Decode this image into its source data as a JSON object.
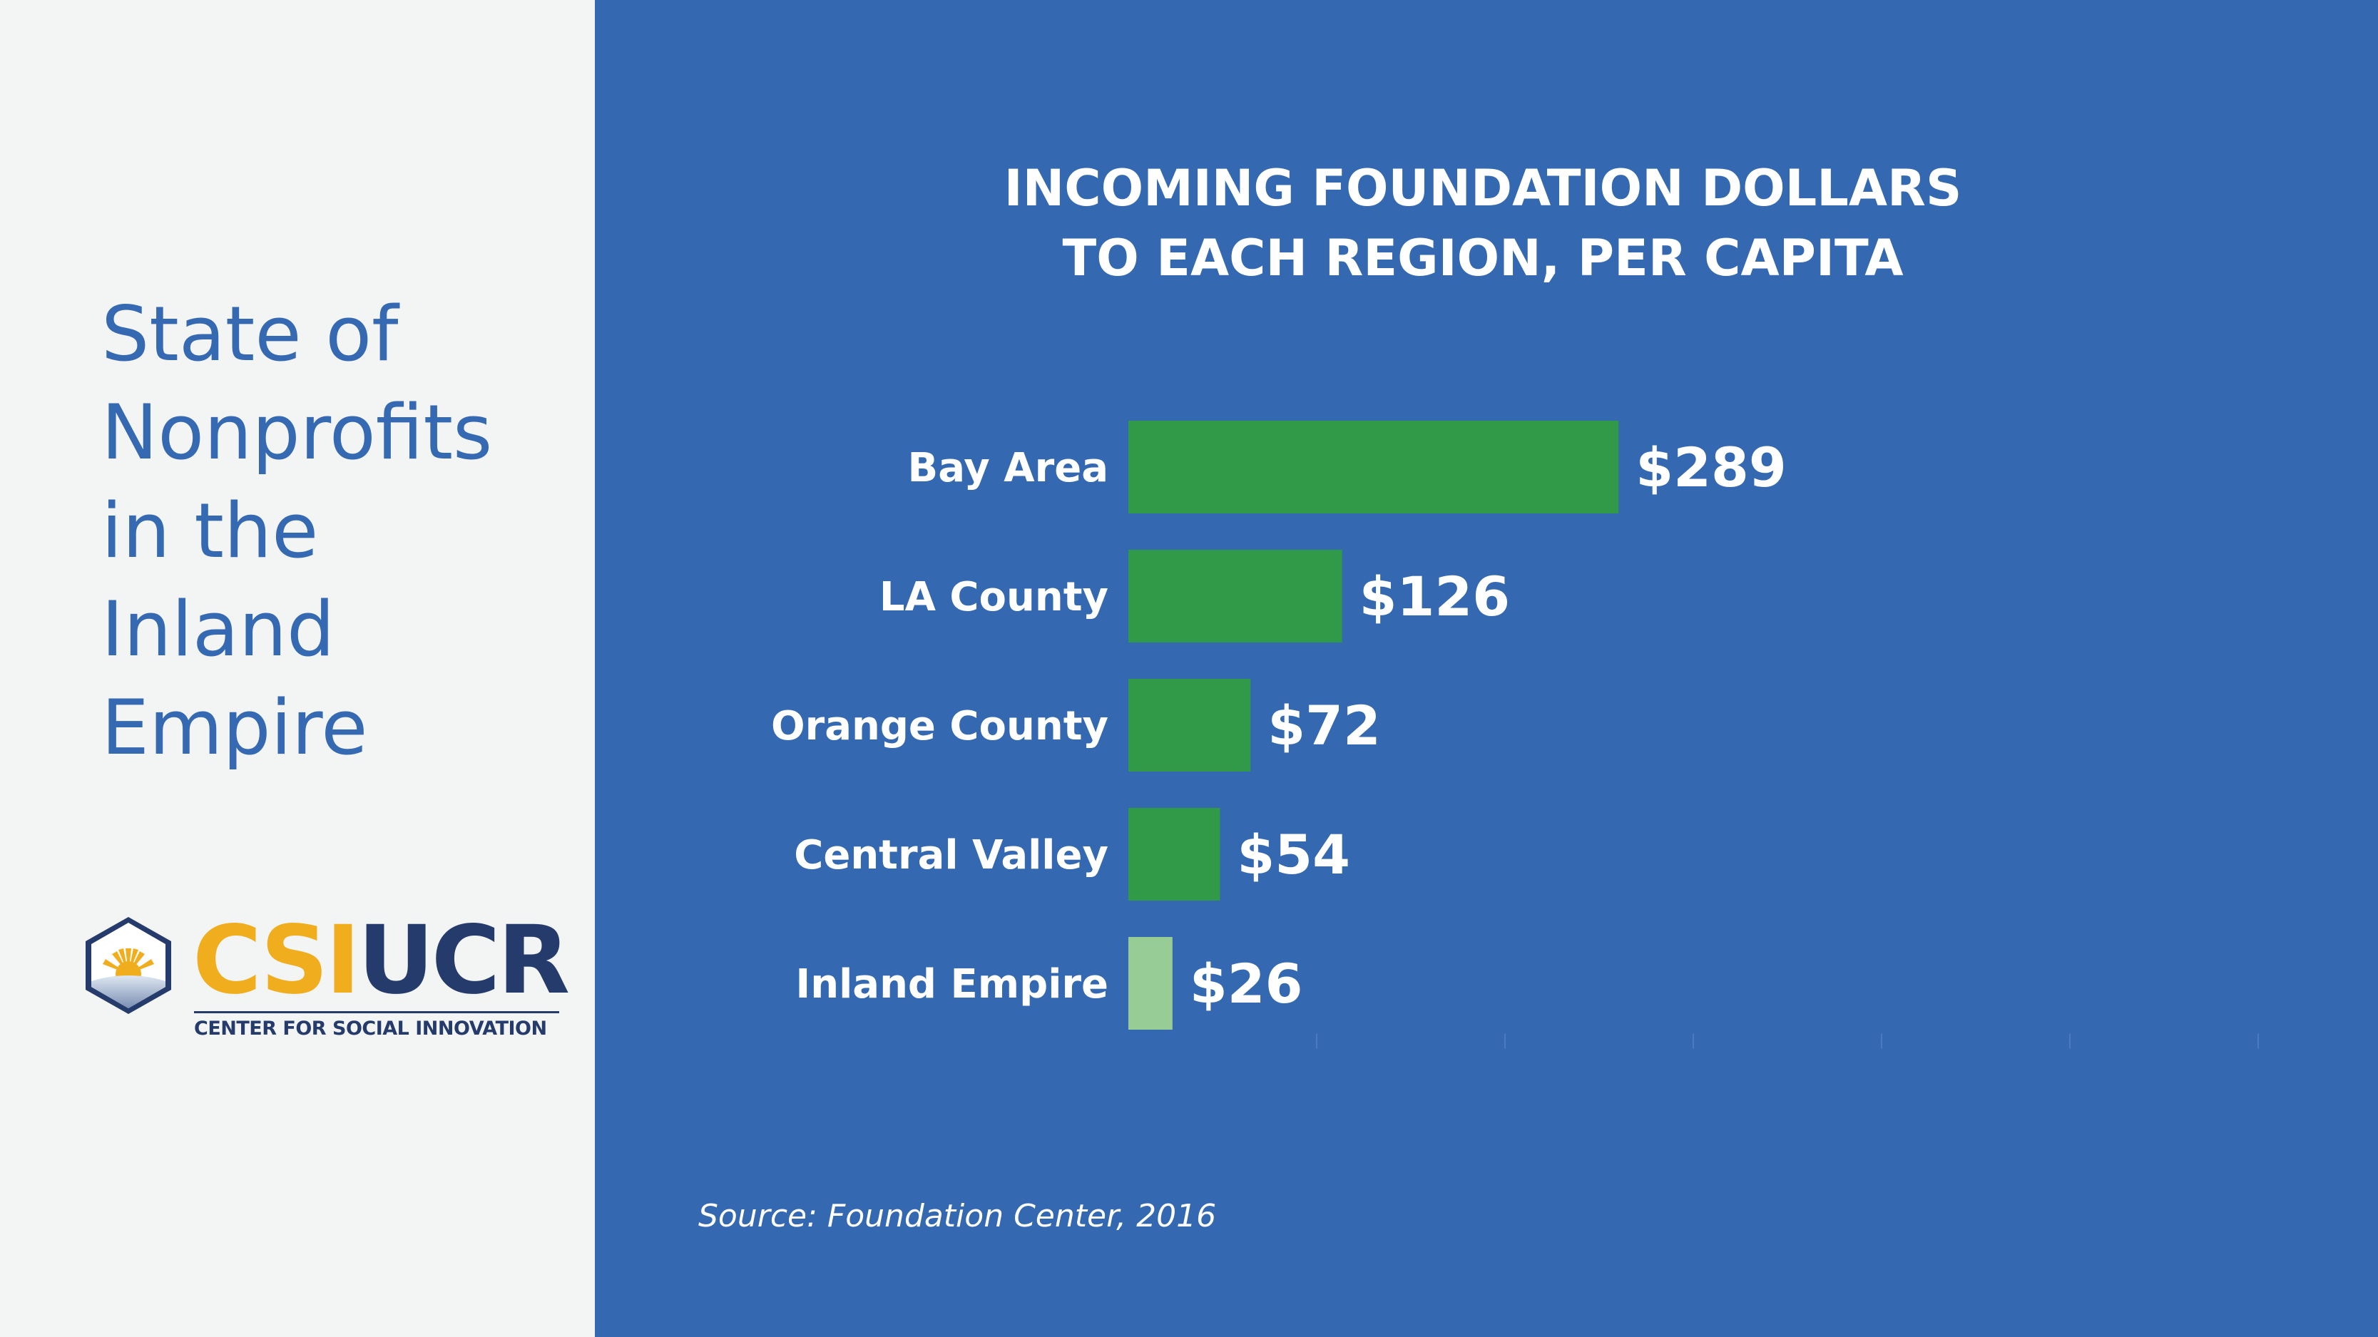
{
  "sidebar": {
    "title_lines": [
      "State of",
      "Nonprofits",
      "in the",
      "Inland",
      "Empire"
    ],
    "logo": {
      "wordmark_accent": "CSI",
      "wordmark_main": "UCR",
      "tagline": "CENTER FOR SOCIAL INNOVATION"
    }
  },
  "colors": {
    "left_background": "#f3f4f4",
    "chart_background": "#3469b1",
    "bar_default": "#309a48",
    "bar_highlight": "#98cc96",
    "title_text": "#3569b1",
    "logo_gold": "#f0ae1e",
    "logo_navy": "#243b6b"
  },
  "chart_data": {
    "type": "bar",
    "orientation": "horizontal",
    "title_lines": [
      "INCOMING FOUNDATION DOLLARS",
      "TO EACH REGION, PER CAPITA"
    ],
    "categories": [
      "Bay Area",
      "LA County",
      "Orange County",
      "Central Valley",
      "Inland Empire"
    ],
    "values": [
      289,
      126,
      72,
      54,
      26
    ],
    "value_labels": [
      "$289",
      "$126",
      "$72",
      "$54",
      "$26"
    ],
    "highlight_category": "Inland Empire",
    "xlim": [
      0,
      352
    ],
    "grid": false
  },
  "source": "Source: Foundation Center, 2016"
}
